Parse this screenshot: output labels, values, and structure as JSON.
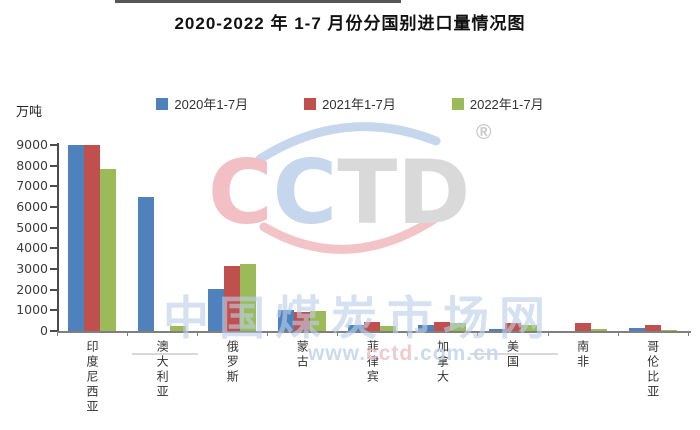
{
  "chart_data": {
    "type": "bar",
    "title": "2020-2022 年 1-7 月份分国别进口量情况图",
    "xlabel": "",
    "ylabel": "万吨",
    "ylim": [
      0,
      9000
    ],
    "y_ticks": [
      0,
      1000,
      2000,
      3000,
      4000,
      5000,
      6000,
      7000,
      8000,
      9000
    ],
    "grid": false,
    "legend_position": "top-center",
    "categories": [
      "印度尼西亚",
      "澳大利亚",
      "俄罗斯",
      "蒙古",
      "菲律宾",
      "加拿大",
      "美国",
      "南非",
      "哥伦比亚"
    ],
    "series": [
      {
        "name": "2020年1-7月",
        "color": "#4f81bd",
        "values": [
          9000,
          6500,
          2050,
          1030,
          290,
          290,
          100,
          0,
          130
        ]
      },
      {
        "name": "2021年1-7月",
        "color": "#c0504d",
        "values": [
          8990,
          0,
          3130,
          920,
          450,
          450,
          380,
          380,
          280
        ]
      },
      {
        "name": "2022年1-7月",
        "color": "#9bbb59",
        "values": [
          7850,
          250,
          3220,
          970,
          240,
          400,
          310,
          110,
          30
        ]
      }
    ]
  },
  "watermark": {
    "logo_letters": [
      {
        "ch": "C",
        "color": "#f2c0c4"
      },
      {
        "ch": "C",
        "color": "#c6d6ec"
      },
      {
        "ch": "T",
        "color": "#d9d9d9"
      },
      {
        "ch": "D",
        "color": "#d9d9d9"
      }
    ],
    "registered_mark": "®",
    "cn_text": "中国煤炭市场网",
    "url_parts": [
      {
        "text": "www.",
        "color": "#c3d4ec"
      },
      {
        "text": "cctd",
        "color": "#eec1c6"
      },
      {
        "text": ".com.cn",
        "color": "#c3d4ec"
      }
    ],
    "arc_top_color": "#c6d6ec",
    "arc_bottom_color": "#f2c4c8"
  }
}
